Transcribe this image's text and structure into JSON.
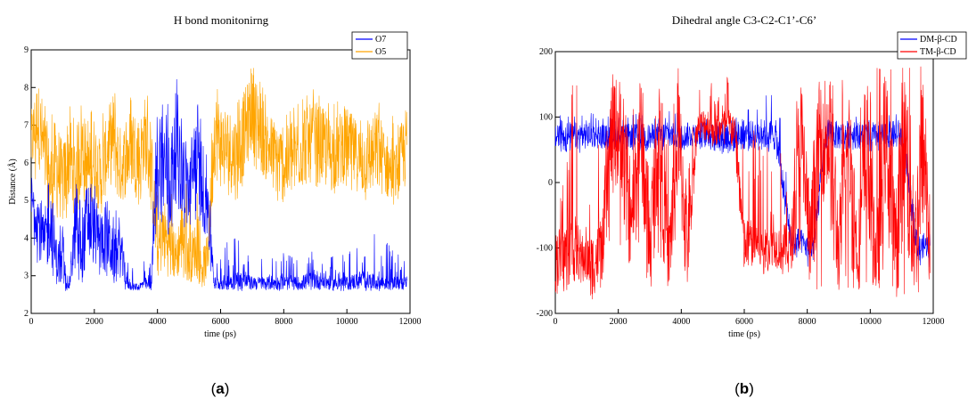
{
  "panels": [
    {
      "caption_open": "(",
      "caption_letter": "a",
      "caption_close": ")"
    },
    {
      "caption_open": "(",
      "caption_letter": "b",
      "caption_close": ")"
    }
  ],
  "chart_data": [
    {
      "type": "line",
      "title": "H bond monitonirng",
      "xlabel": "time (ps)",
      "ylabel": "Distance (Å)",
      "xlim": [
        0,
        12000
      ],
      "ylim": [
        2,
        9
      ],
      "xticks": [
        0,
        2000,
        4000,
        6000,
        8000,
        10000,
        12000
      ],
      "yticks": [
        2,
        3,
        4,
        5,
        6,
        7,
        8,
        9
      ],
      "legend_position": "top-right",
      "series": [
        {
          "name": "O7",
          "color": "#0000ff",
          "x": [
            0,
            200,
            400,
            600,
            800,
            1000,
            1200,
            1400,
            1600,
            1800,
            2000,
            2200,
            2400,
            2600,
            2800,
            3000,
            3200,
            3400,
            3600,
            3800,
            4000,
            4200,
            4400,
            4600,
            4800,
            5000,
            5200,
            5400,
            5600,
            5800,
            6000,
            6500,
            7000,
            7500,
            8000,
            8500,
            9000,
            9500,
            10000,
            10500,
            11000,
            11500,
            11900
          ],
          "y": [
            5.0,
            4.6,
            3.8,
            4.5,
            3.4,
            3.2,
            2.7,
            4.3,
            3.6,
            4.6,
            4.2,
            3.9,
            4.1,
            3.5,
            3.8,
            2.9,
            2.7,
            2.7,
            2.8,
            2.7,
            6.2,
            6.0,
            5.4,
            6.6,
            5.8,
            5.2,
            6.1,
            5.5,
            4.9,
            2.8,
            2.8,
            2.9,
            2.8,
            2.8,
            2.8,
            2.8,
            2.9,
            2.8,
            2.8,
            2.9,
            2.8,
            2.8,
            2.8
          ],
          "range_low": [
            4.0,
            3.2,
            3.0,
            3.0,
            2.7,
            2.6,
            2.6,
            3.0,
            2.8,
            3.2,
            3.2,
            3.0,
            3.0,
            2.8,
            2.9,
            2.6,
            2.6,
            2.6,
            2.6,
            2.6,
            4.5,
            4.4,
            4.0,
            5.0,
            4.4,
            4.0,
            4.5,
            4.2,
            3.6,
            2.6,
            2.6,
            2.6,
            2.6,
            2.6,
            2.6,
            2.6,
            2.6,
            2.6,
            2.6,
            2.6,
            2.6,
            2.6,
            2.6
          ],
          "range_high": [
            5.6,
            5.5,
            5.0,
            5.6,
            4.6,
            4.4,
            3.5,
            5.5,
            4.8,
            6.0,
            5.4,
            5.1,
            5.4,
            4.6,
            4.9,
            3.4,
            3.2,
            3.2,
            3.4,
            3.3,
            8.4,
            8.0,
            7.3,
            8.7,
            8.0,
            7.0,
            7.9,
            7.0,
            6.3,
            3.6,
            3.8,
            4.0,
            3.5,
            3.4,
            3.6,
            3.4,
            3.7,
            3.5,
            3.6,
            3.8,
            4.2,
            3.6,
            3.6
          ]
        },
        {
          "name": "O5",
          "color": "#ffa500",
          "x": [
            0,
            200,
            400,
            600,
            800,
            1000,
            1200,
            1400,
            1600,
            1800,
            2000,
            2200,
            2400,
            2600,
            2800,
            3000,
            3200,
            3400,
            3600,
            3800,
            4000,
            4200,
            4400,
            4600,
            4800,
            5000,
            5200,
            5400,
            5600,
            5800,
            6000,
            6500,
            7000,
            7500,
            8000,
            8500,
            9000,
            9500,
            10000,
            10500,
            11000,
            11500,
            11900
          ],
          "y": [
            6.5,
            7.2,
            6.3,
            5.5,
            6.0,
            5.4,
            6.2,
            5.6,
            6.5,
            5.7,
            6.2,
            5.5,
            6.3,
            6.7,
            5.9,
            6.1,
            6.5,
            6.0,
            6.7,
            5.9,
            3.6,
            4.1,
            3.8,
            3.5,
            4.2,
            3.4,
            3.7,
            3.2,
            3.5,
            6.8,
            6.5,
            6.2,
            7.4,
            6.4,
            5.9,
            6.3,
            6.6,
            6.2,
            6.5,
            6.0,
            6.3,
            5.6,
            6.5
          ],
          "range_low": [
            5.5,
            5.6,
            4.8,
            4.3,
            4.6,
            4.2,
            4.8,
            4.4,
            5.0,
            4.6,
            5.0,
            4.4,
            5.2,
            5.3,
            4.7,
            5.0,
            5.2,
            4.8,
            5.5,
            4.6,
            2.9,
            3.0,
            2.8,
            2.8,
            3.0,
            2.7,
            2.9,
            2.7,
            2.8,
            5.4,
            5.2,
            5.0,
            6.0,
            5.3,
            4.8,
            5.2,
            5.4,
            5.1,
            5.4,
            5.0,
            5.1,
            4.8,
            5.2
          ],
          "range_high": [
            7.5,
            8.3,
            7.8,
            7.2,
            7.5,
            7.1,
            7.6,
            7.1,
            8.0,
            7.1,
            7.6,
            7.0,
            7.8,
            8.0,
            7.4,
            7.6,
            8.1,
            7.6,
            8.1,
            7.3,
            5.5,
            5.9,
            5.4,
            5.2,
            6.0,
            5.0,
            5.4,
            4.7,
            5.1,
            8.1,
            7.8,
            7.5,
            8.6,
            7.7,
            7.2,
            7.6,
            8.0,
            7.5,
            7.8,
            7.4,
            7.6,
            7.2,
            7.6
          ]
        }
      ]
    },
    {
      "type": "line",
      "title": "Dihedral angle C3-C2-C1’-C6’",
      "xlabel": "time (ps)",
      "ylabel": "",
      "xlim": [
        0,
        12000
      ],
      "ylim": [
        -200,
        200
      ],
      "xticks": [
        0,
        2000,
        4000,
        6000,
        8000,
        10000,
        12000
      ],
      "yticks": [
        -200,
        -100,
        0,
        100,
        200
      ],
      "legend_position": "top-right",
      "series": [
        {
          "name": "DM-β-CD",
          "color": "#0000ff",
          "x": [
            0,
            200,
            400,
            600,
            800,
            1000,
            1500,
            2000,
            2500,
            3000,
            3500,
            4000,
            4500,
            5000,
            5500,
            6000,
            6500,
            7000,
            7500,
            7800,
            8000,
            8200,
            8600,
            9000,
            9500,
            10000,
            10500,
            11000,
            11500,
            11900
          ],
          "y": [
            70,
            75,
            68,
            72,
            70,
            74,
            70,
            72,
            71,
            70,
            73,
            70,
            75,
            72,
            70,
            72,
            74,
            72,
            -95,
            -90,
            -100,
            -98,
            75,
            72,
            74,
            70,
            72,
            74,
            -100,
            -95
          ],
          "range_low": [
            30,
            45,
            40,
            50,
            45,
            50,
            50,
            52,
            50,
            48,
            50,
            50,
            52,
            50,
            40,
            48,
            50,
            45,
            -120,
            -120,
            -130,
            -125,
            50,
            48,
            50,
            48,
            50,
            48,
            -125,
            -130
          ],
          "range_high": [
            100,
            110,
            100,
            105,
            100,
            108,
            100,
            102,
            105,
            100,
            110,
            105,
            108,
            105,
            100,
            110,
            115,
            160,
            -60,
            -70,
            -80,
            -70,
            100,
            100,
            105,
            100,
            102,
            105,
            -80,
            -75
          ]
        },
        {
          "name": "TM-β-CD",
          "color": "#ff0000",
          "x": [
            0,
            300,
            600,
            900,
            1200,
            1500,
            1800,
            2100,
            2400,
            2700,
            3000,
            3300,
            3600,
            3900,
            4200,
            4500,
            4800,
            5100,
            5400,
            5700,
            6000,
            6300,
            6600,
            6900,
            7200,
            7500,
            7800,
            8100,
            8400,
            8700,
            9000,
            9300,
            9600,
            9900,
            10200,
            10500,
            10800,
            11100,
            11400,
            11700,
            11900
          ],
          "y": [
            -120,
            -110,
            -100,
            -115,
            -125,
            -100,
            80,
            75,
            -80,
            90,
            -100,
            85,
            -120,
            80,
            -100,
            85,
            90,
            80,
            88,
            82,
            -100,
            -90,
            -105,
            -95,
            -100,
            -95,
            80,
            -100,
            75,
            70,
            -110,
            70,
            -120,
            70,
            -130,
            75,
            -100,
            80,
            -100,
            60,
            -100
          ],
          "range_low": [
            -175,
            -165,
            -160,
            -150,
            -180,
            -155,
            -60,
            -100,
            -140,
            -80,
            -175,
            -100,
            -175,
            -120,
            -175,
            60,
            60,
            50,
            60,
            40,
            -150,
            -130,
            -140,
            -130,
            -140,
            -135,
            -100,
            -170,
            -160,
            -150,
            -175,
            -160,
            -175,
            -150,
            -180,
            -160,
            -175,
            -170,
            -180,
            -150,
            -170
          ],
          "range_high": [
            -60,
            10,
            180,
            60,
            170,
            0,
            175,
            170,
            130,
            175,
            30,
            175,
            60,
            175,
            20,
            140,
            175,
            130,
            175,
            100,
            50,
            80,
            40,
            70,
            40,
            60,
            175,
            20,
            175,
            178,
            178,
            120,
            175,
            160,
            175,
            170,
            175,
            175,
            175,
            178,
            80
          ]
        }
      ]
    }
  ]
}
